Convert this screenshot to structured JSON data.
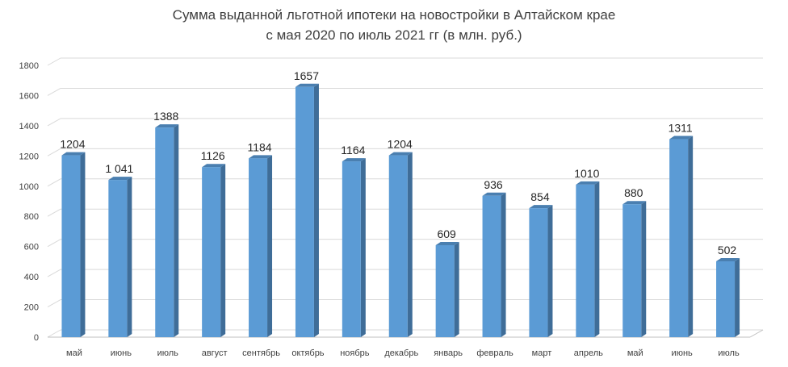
{
  "chart_data": {
    "type": "bar",
    "title": "Сумма выданной льготной ипотеки на новостройки в Алтайском крае",
    "subtitle": "с мая 2020 по июль 2021 гг (в млн. руб.)",
    "categories": [
      "май",
      "июнь",
      "июль",
      "август",
      "сентябрь",
      "октябрь",
      "ноябрь",
      "декабрь",
      "январь",
      "февраль",
      "март",
      "апрель",
      "май",
      "июнь",
      "июль"
    ],
    "values": [
      1204,
      1041,
      1388,
      1126,
      1184,
      1657,
      1164,
      1204,
      609,
      936,
      854,
      1010,
      880,
      1311,
      502
    ],
    "data_labels": [
      "1204",
      "1 041",
      "1388",
      "1126",
      "1184",
      "1657",
      "1164",
      "1204",
      "609",
      "936",
      "854",
      "1010",
      "880",
      "1311",
      "502"
    ],
    "ylim": [
      0,
      1800
    ],
    "yticks": [
      "0",
      "200",
      "400",
      "600",
      "800",
      "1000",
      "1200",
      "1400",
      "1600",
      "1800"
    ],
    "xlabel": "",
    "ylabel": "",
    "grid": true,
    "legend": "none",
    "colors": {
      "bar_front": "#5b9bd5",
      "bar_side": "#3f6d98",
      "bar_top": "#4a7fb0",
      "grid": "#d9d9d9",
      "floor": "#bfbfbf"
    }
  }
}
